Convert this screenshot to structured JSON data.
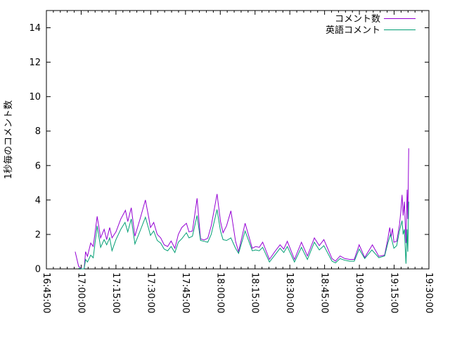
{
  "chart_data": {
    "type": "line",
    "title": "",
    "xlabel": "",
    "ylabel": "1秒毎のコメント数",
    "background_color": "#ffffff",
    "border_color": "#000000",
    "grid": false,
    "legend_position": "top-right-inside",
    "ylim": [
      0,
      15
    ],
    "y_ticks": [
      0,
      2,
      4,
      6,
      8,
      10,
      12,
      14
    ],
    "x_range_minutes": [
      0,
      165
    ],
    "x_major_tick_interval_minutes": 15,
    "x_minor_tick_interval_minutes": 3,
    "x_tick_labels": [
      "16:45:00",
      "17:00:00",
      "17:15:00",
      "17:30:00",
      "17:45:00",
      "18:00:00",
      "18:15:00",
      "18:30:00",
      "18:45:00",
      "19:00:00",
      "19:15:00",
      "19:30:00"
    ],
    "x_unit": "time (minutes after 16:45:00)",
    "y_unit": "comments per second",
    "series": [
      {
        "id": "comment-count",
        "name": "コメント数",
        "color": "#9400d3",
        "points": [
          [
            12.4,
            1.0
          ],
          [
            13.9,
            0.15
          ],
          [
            15.2,
            0.0
          ],
          [
            16.3,
            0.0
          ],
          [
            16.9,
            1.0
          ],
          [
            17.7,
            0.73
          ],
          [
            19.1,
            1.5
          ],
          [
            20.2,
            1.3
          ],
          [
            21.9,
            3.05
          ],
          [
            23.4,
            1.8
          ],
          [
            24.9,
            2.3
          ],
          [
            26.0,
            1.7
          ],
          [
            27.3,
            2.4
          ],
          [
            28.3,
            1.8
          ],
          [
            30.0,
            2.15
          ],
          [
            32.1,
            2.9
          ],
          [
            34.1,
            3.4
          ],
          [
            35.1,
            2.75
          ],
          [
            36.6,
            3.55
          ],
          [
            38.2,
            1.9
          ],
          [
            40.4,
            2.9
          ],
          [
            42.7,
            4.0
          ],
          [
            44.2,
            2.95
          ],
          [
            44.9,
            2.4
          ],
          [
            46.3,
            2.7
          ],
          [
            47.8,
            2.0
          ],
          [
            49.3,
            1.8
          ],
          [
            50.8,
            1.4
          ],
          [
            52.3,
            1.3
          ],
          [
            53.8,
            1.62
          ],
          [
            55.4,
            1.2
          ],
          [
            56.9,
            2.0
          ],
          [
            58.4,
            2.4
          ],
          [
            60.4,
            2.65
          ],
          [
            61.5,
            2.15
          ],
          [
            63.0,
            2.2
          ],
          [
            65.0,
            4.1
          ],
          [
            66.5,
            1.75
          ],
          [
            68.0,
            1.68
          ],
          [
            69.6,
            1.78
          ],
          [
            71.1,
            2.5
          ],
          [
            73.6,
            4.35
          ],
          [
            75.1,
            2.75
          ],
          [
            76.2,
            2.1
          ],
          [
            77.7,
            2.5
          ],
          [
            79.6,
            3.37
          ],
          [
            81.6,
            1.6
          ],
          [
            82.9,
            1.0
          ],
          [
            85.7,
            2.65
          ],
          [
            88.8,
            1.2
          ],
          [
            90.3,
            1.3
          ],
          [
            91.8,
            1.25
          ],
          [
            93.3,
            1.55
          ],
          [
            96.2,
            0.55
          ],
          [
            98.5,
            1.0
          ],
          [
            100.8,
            1.4
          ],
          [
            102.4,
            1.15
          ],
          [
            103.9,
            1.6
          ],
          [
            107.0,
            0.55
          ],
          [
            110.0,
            1.55
          ],
          [
            112.6,
            0.75
          ],
          [
            115.6,
            1.8
          ],
          [
            117.7,
            1.35
          ],
          [
            119.7,
            1.7
          ],
          [
            123.2,
            0.6
          ],
          [
            124.7,
            0.45
          ],
          [
            126.7,
            0.75
          ],
          [
            128.7,
            0.6
          ],
          [
            130.8,
            0.55
          ],
          [
            132.8,
            0.55
          ],
          [
            134.9,
            1.4
          ],
          [
            137.3,
            0.66
          ],
          [
            140.6,
            1.4
          ],
          [
            143.4,
            0.73
          ],
          [
            145.9,
            0.8
          ],
          [
            147.3,
            1.75
          ],
          [
            148.1,
            2.4
          ],
          [
            148.7,
            1.85
          ],
          [
            149.3,
            2.35
          ],
          [
            149.9,
            1.55
          ],
          [
            151.1,
            1.6
          ],
          [
            152.3,
            2.55
          ],
          [
            152.9,
            3.35
          ],
          [
            153.4,
            4.3
          ],
          [
            153.9,
            3.1
          ],
          [
            154.4,
            3.9
          ],
          [
            155.1,
            1.5
          ],
          [
            155.6,
            4.6
          ],
          [
            155.9,
            2.9
          ],
          [
            156.3,
            7.0
          ]
        ]
      },
      {
        "id": "english-comments",
        "name": "英語コメント",
        "color": "#009e73",
        "points": [
          [
            13.9,
            0.05
          ],
          [
            15.2,
            0.0
          ],
          [
            16.3,
            0.0
          ],
          [
            16.9,
            0.55
          ],
          [
            17.7,
            0.4
          ],
          [
            19.1,
            0.8
          ],
          [
            20.2,
            0.65
          ],
          [
            21.9,
            2.5
          ],
          [
            23.4,
            1.25
          ],
          [
            24.9,
            1.7
          ],
          [
            26.0,
            1.4
          ],
          [
            27.3,
            1.8
          ],
          [
            28.3,
            1.05
          ],
          [
            30.0,
            1.7
          ],
          [
            32.1,
            2.3
          ],
          [
            33.9,
            2.7
          ],
          [
            35.1,
            2.15
          ],
          [
            36.6,
            2.9
          ],
          [
            38.2,
            1.45
          ],
          [
            40.4,
            2.2
          ],
          [
            42.7,
            3.0
          ],
          [
            44.2,
            2.3
          ],
          [
            44.9,
            1.95
          ],
          [
            46.3,
            2.2
          ],
          [
            47.8,
            1.65
          ],
          [
            49.3,
            1.5
          ],
          [
            50.8,
            1.15
          ],
          [
            52.3,
            1.05
          ],
          [
            53.8,
            1.3
          ],
          [
            55.4,
            0.95
          ],
          [
            56.9,
            1.55
          ],
          [
            58.4,
            1.75
          ],
          [
            60.4,
            2.1
          ],
          [
            61.5,
            1.8
          ],
          [
            63.0,
            1.9
          ],
          [
            65.0,
            3.1
          ],
          [
            66.5,
            1.65
          ],
          [
            68.0,
            1.6
          ],
          [
            69.6,
            1.55
          ],
          [
            71.1,
            2.0
          ],
          [
            73.6,
            3.45
          ],
          [
            75.1,
            2.2
          ],
          [
            76.2,
            1.7
          ],
          [
            77.7,
            1.65
          ],
          [
            79.6,
            1.8
          ],
          [
            81.6,
            1.2
          ],
          [
            82.9,
            0.9
          ],
          [
            85.7,
            2.2
          ],
          [
            88.8,
            1.05
          ],
          [
            90.3,
            1.1
          ],
          [
            91.8,
            1.05
          ],
          [
            93.3,
            1.25
          ],
          [
            96.2,
            0.4
          ],
          [
            98.5,
            0.8
          ],
          [
            100.8,
            1.2
          ],
          [
            102.4,
            0.95
          ],
          [
            103.9,
            1.3
          ],
          [
            107.0,
            0.4
          ],
          [
            110.0,
            1.25
          ],
          [
            112.6,
            0.55
          ],
          [
            115.6,
            1.55
          ],
          [
            117.7,
            1.1
          ],
          [
            119.7,
            1.35
          ],
          [
            123.2,
            0.45
          ],
          [
            124.7,
            0.35
          ],
          [
            126.7,
            0.6
          ],
          [
            128.7,
            0.5
          ],
          [
            130.8,
            0.45
          ],
          [
            132.8,
            0.45
          ],
          [
            134.9,
            1.15
          ],
          [
            137.3,
            0.6
          ],
          [
            140.4,
            1.1
          ],
          [
            143.4,
            0.65
          ],
          [
            145.9,
            0.75
          ],
          [
            147.3,
            1.5
          ],
          [
            148.4,
            2.0
          ],
          [
            149.9,
            1.2
          ],
          [
            151.1,
            1.35
          ],
          [
            152.3,
            2.2
          ],
          [
            153.4,
            2.8
          ],
          [
            153.9,
            2.0
          ],
          [
            154.4,
            2.3
          ],
          [
            155.1,
            0.3
          ],
          [
            155.6,
            2.3
          ],
          [
            155.9,
            1.0
          ],
          [
            156.3,
            3.9
          ]
        ]
      }
    ]
  }
}
